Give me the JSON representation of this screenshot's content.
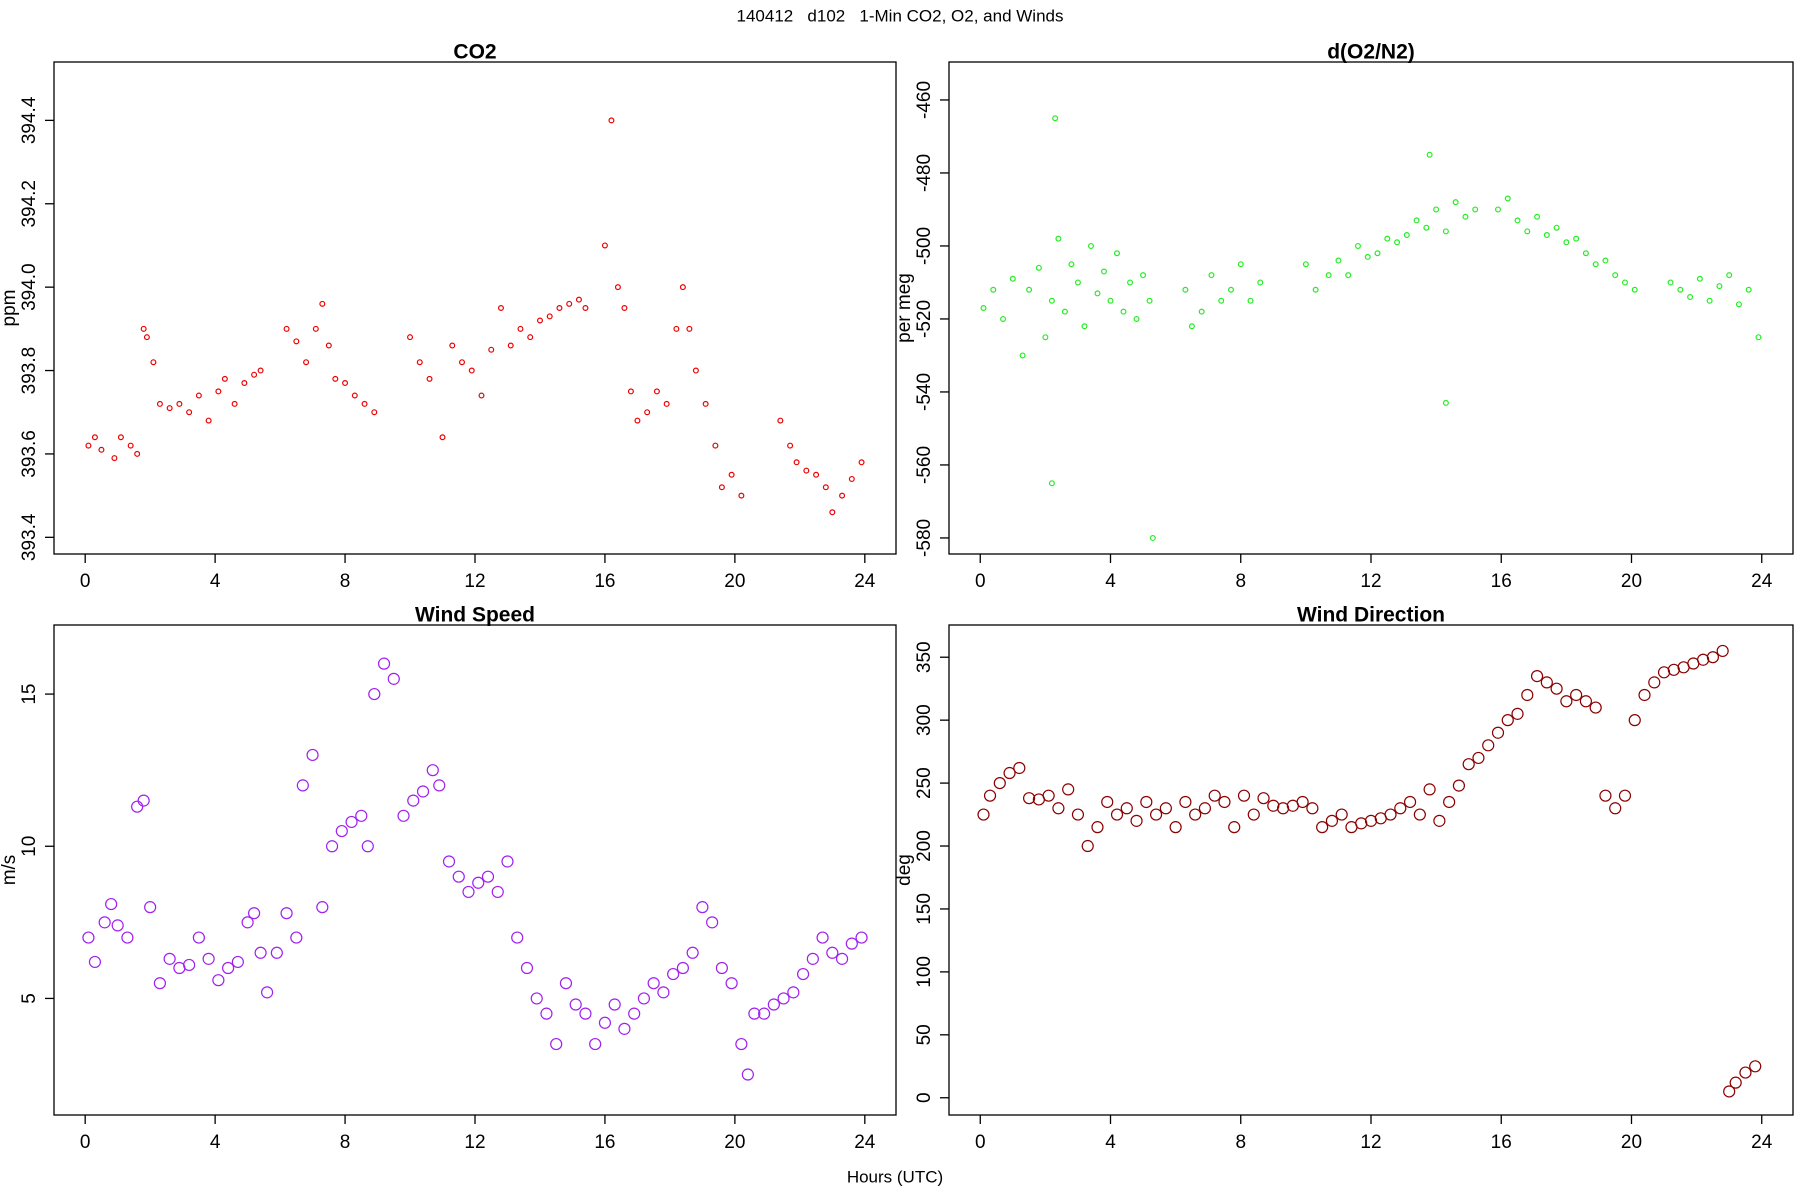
{
  "title": "140412   d102   1-Min CO2, O2, and Winds",
  "x_label": "Hours (UTC)",
  "chart_data": [
    {
      "type": "scatter",
      "title": "CO2",
      "y_label": "ppm",
      "color": "#ee0000",
      "xlim": [
        -0.96,
        24.96
      ],
      "xticks": [
        0,
        4,
        8,
        12,
        16,
        20,
        24
      ],
      "ylim": [
        393.36,
        394.54
      ],
      "yticks": [
        393.4,
        393.6,
        393.8,
        {
          "value": 394,
          "label": "394.0"
        },
        394.2,
        394.4
      ],
      "x": [
        0.1,
        0.3,
        0.5,
        0.9,
        1.1,
        1.4,
        1.6,
        1.8,
        1.9,
        2.1,
        2.3,
        2.6,
        2.9,
        3.2,
        3.5,
        3.8,
        4.1,
        4.3,
        4.6,
        4.9,
        5.2,
        5.4,
        6.2,
        6.5,
        6.8,
        7.1,
        7.3,
        7.5,
        7.7,
        8.0,
        8.3,
        8.6,
        8.9,
        10.0,
        10.3,
        10.6,
        11.0,
        11.3,
        11.6,
        11.9,
        12.2,
        12.5,
        12.8,
        13.1,
        13.4,
        13.7,
        14.0,
        14.3,
        14.6,
        14.9,
        15.2,
        15.4,
        16.0,
        16.2,
        16.4,
        16.6,
        16.8,
        17.0,
        17.3,
        17.6,
        17.9,
        18.2,
        18.4,
        18.6,
        18.8,
        19.1,
        19.4,
        19.6,
        19.9,
        20.2,
        21.4,
        21.7,
        21.9,
        22.2,
        22.5,
        22.8,
        23.0,
        23.3,
        23.6,
        23.9
      ],
      "values": [
        393.62,
        393.64,
        393.61,
        393.59,
        393.64,
        393.62,
        393.6,
        393.9,
        393.88,
        393.82,
        393.72,
        393.71,
        393.72,
        393.7,
        393.74,
        393.68,
        393.75,
        393.78,
        393.72,
        393.77,
        393.79,
        393.8,
        393.9,
        393.87,
        393.82,
        393.9,
        393.96,
        393.86,
        393.78,
        393.77,
        393.74,
        393.72,
        393.7,
        393.88,
        393.82,
        393.78,
        393.64,
        393.86,
        393.82,
        393.8,
        393.74,
        393.85,
        393.95,
        393.86,
        393.9,
        393.88,
        393.92,
        393.93,
        393.95,
        393.96,
        393.97,
        393.95,
        394.1,
        394.4,
        394.0,
        393.95,
        393.75,
        393.68,
        393.7,
        393.75,
        393.72,
        393.9,
        394.0,
        393.9,
        393.8,
        393.72,
        393.62,
        393.52,
        393.55,
        393.5,
        393.68,
        393.62,
        393.58,
        393.56,
        393.55,
        393.52,
        393.46,
        393.5,
        393.54,
        393.58
      ]
    },
    {
      "type": "scatter",
      "title": "d(O2/N2)",
      "y_label": "per meg",
      "color": "#22ee22",
      "xlim": [
        -0.96,
        24.96
      ],
      "xticks": [
        0,
        4,
        8,
        12,
        16,
        20,
        24
      ],
      "ylim": [
        -584.4,
        -449.6
      ],
      "yticks": [
        -580,
        -560,
        -540,
        -520,
        -500,
        -480,
        -460
      ],
      "x": [
        0.1,
        0.4,
        0.7,
        1.0,
        1.3,
        1.5,
        1.8,
        2.0,
        2.2,
        2.4,
        2.6,
        2.8,
        3.0,
        3.2,
        3.4,
        3.6,
        3.8,
        4.0,
        4.2,
        4.4,
        4.6,
        4.8,
        5.0,
        5.2,
        6.3,
        6.5,
        6.8,
        7.1,
        7.4,
        7.7,
        8.0,
        8.3,
        8.6,
        10.0,
        10.3,
        10.7,
        11.0,
        11.3,
        11.6,
        11.9,
        12.2,
        12.5,
        12.8,
        13.1,
        13.4,
        13.7,
        14.0,
        14.3,
        14.6,
        14.9,
        15.2,
        15.9,
        16.2,
        16.5,
        16.8,
        17.1,
        17.4,
        17.7,
        18.0,
        18.3,
        18.6,
        18.9,
        19.2,
        19.5,
        19.8,
        20.1,
        21.2,
        21.5,
        21.8,
        22.1,
        22.4,
        22.7,
        23.0,
        23.3,
        23.6,
        23.9,
        2.3,
        5.3,
        2.2,
        14.3,
        13.8
      ],
      "values": [
        -517,
        -512,
        -520,
        -509,
        -530,
        -512,
        -506,
        -525,
        -515,
        -498,
        -518,
        -505,
        -510,
        -522,
        -500,
        -513,
        -507,
        -515,
        -502,
        -518,
        -510,
        -520,
        -508,
        -515,
        -512,
        -522,
        -518,
        -508,
        -515,
        -512,
        -505,
        -515,
        -510,
        -505,
        -512,
        -508,
        -504,
        -508,
        -500,
        -503,
        -502,
        -498,
        -499,
        -497,
        -493,
        -495,
        -490,
        -496,
        -488,
        -492,
        -490,
        -490,
        -487,
        -493,
        -496,
        -492,
        -497,
        -495,
        -499,
        -498,
        -502,
        -505,
        -504,
        -508,
        -510,
        -512,
        -510,
        -512,
        -514,
        -509,
        -515,
        -511,
        -508,
        -516,
        -512,
        -525,
        -465,
        -580,
        -565,
        -543,
        -475
      ]
    },
    {
      "type": "scatter",
      "title": "Wind Speed",
      "y_label": "m/s",
      "color": "#a020f0",
      "xlim": [
        -0.96,
        24.96
      ],
      "xticks": [
        0,
        4,
        8,
        12,
        16,
        20,
        24
      ],
      "ylim": [
        1.17,
        17.27
      ],
      "yticks": [
        5,
        10,
        15
      ],
      "x": [
        0.1,
        0.3,
        0.6,
        0.8,
        1.0,
        1.3,
        1.6,
        1.8,
        2.0,
        2.3,
        2.6,
        2.9,
        3.2,
        3.5,
        3.8,
        4.1,
        4.4,
        4.7,
        5.0,
        5.2,
        5.4,
        5.6,
        5.9,
        6.2,
        6.5,
        6.7,
        7.0,
        7.3,
        7.6,
        7.9,
        8.2,
        8.5,
        8.7,
        8.9,
        9.2,
        9.5,
        9.8,
        10.1,
        10.4,
        10.7,
        10.9,
        11.2,
        11.5,
        11.8,
        12.1,
        12.4,
        12.7,
        13.0,
        13.3,
        13.6,
        13.9,
        14.2,
        14.5,
        14.8,
        15.1,
        15.4,
        15.7,
        16.0,
        16.3,
        16.6,
        16.9,
        17.2,
        17.5,
        17.8,
        18.1,
        18.4,
        18.7,
        19.0,
        19.3,
        19.6,
        19.9,
        20.2,
        20.4,
        20.6,
        20.9,
        21.2,
        21.5,
        21.8,
        22.1,
        22.4,
        22.7,
        23.0,
        23.3,
        23.6,
        23.9
      ],
      "values": [
        7.0,
        6.2,
        7.5,
        8.1,
        7.4,
        7.0,
        11.3,
        11.5,
        8.0,
        5.5,
        6.3,
        6.0,
        6.1,
        7.0,
        6.3,
        5.6,
        6.0,
        6.2,
        7.5,
        7.8,
        6.5,
        5.2,
        6.5,
        7.8,
        7.0,
        12.0,
        13.0,
        8.0,
        10.0,
        10.5,
        10.8,
        11.0,
        10.0,
        15.0,
        16.0,
        15.5,
        11.0,
        11.5,
        11.8,
        12.5,
        12.0,
        9.5,
        9.0,
        8.5,
        8.8,
        9.0,
        8.5,
        9.5,
        7.0,
        6.0,
        5.0,
        4.5,
        3.5,
        5.5,
        4.8,
        4.5,
        3.5,
        4.2,
        4.8,
        4.0,
        4.5,
        5.0,
        5.5,
        5.2,
        5.8,
        6.0,
        6.5,
        8.0,
        7.5,
        6.0,
        5.5,
        3.5,
        2.5,
        4.5,
        4.5,
        4.8,
        5.0,
        5.2,
        5.8,
        6.3,
        7.0,
        6.5,
        6.3,
        6.8,
        7.0
      ]
    },
    {
      "type": "scatter",
      "title": "Wind Direction",
      "y_label": "deg",
      "color": "#8b0000",
      "xlim": [
        -0.96,
        24.96
      ],
      "xticks": [
        0,
        4,
        8,
        12,
        16,
        20,
        24
      ],
      "ylim": [
        -13.7,
        375.6
      ],
      "yticks": [
        0,
        50,
        100,
        150,
        200,
        250,
        300,
        350
      ],
      "x": [
        0.1,
        0.3,
        0.6,
        0.9,
        1.2,
        1.5,
        1.8,
        2.1,
        2.4,
        2.7,
        3.0,
        3.3,
        3.6,
        3.9,
        4.2,
        4.5,
        4.8,
        5.1,
        5.4,
        5.7,
        6.0,
        6.3,
        6.6,
        6.9,
        7.2,
        7.5,
        7.8,
        8.1,
        8.4,
        8.7,
        9.0,
        9.3,
        9.6,
        9.9,
        10.2,
        10.5,
        10.8,
        11.1,
        11.4,
        11.7,
        12.0,
        12.3,
        12.6,
        12.9,
        13.2,
        13.5,
        13.8,
        14.1,
        14.4,
        14.7,
        15.0,
        15.3,
        15.6,
        15.9,
        16.2,
        16.5,
        16.8,
        17.1,
        17.4,
        17.7,
        18.0,
        18.3,
        18.6,
        18.9,
        19.2,
        19.5,
        19.8,
        20.1,
        20.4,
        20.7,
        21.0,
        21.3,
        21.6,
        21.9,
        22.2,
        22.5,
        22.8,
        23.0,
        23.2,
        23.5,
        23.8
      ],
      "values": [
        225,
        240,
        250,
        258,
        262,
        238,
        237,
        240,
        230,
        245,
        225,
        200,
        215,
        235,
        225,
        230,
        220,
        235,
        225,
        230,
        215,
        235,
        225,
        230,
        240,
        235,
        215,
        240,
        225,
        238,
        232,
        230,
        232,
        235,
        230,
        215,
        220,
        225,
        215,
        218,
        220,
        222,
        225,
        230,
        235,
        225,
        245,
        220,
        235,
        248,
        265,
        270,
        280,
        290,
        300,
        305,
        320,
        335,
        330,
        325,
        315,
        320,
        315,
        310,
        240,
        230,
        240,
        300,
        320,
        330,
        338,
        340,
        342,
        345,
        348,
        350,
        355,
        5,
        12,
        20,
        25
      ]
    }
  ]
}
